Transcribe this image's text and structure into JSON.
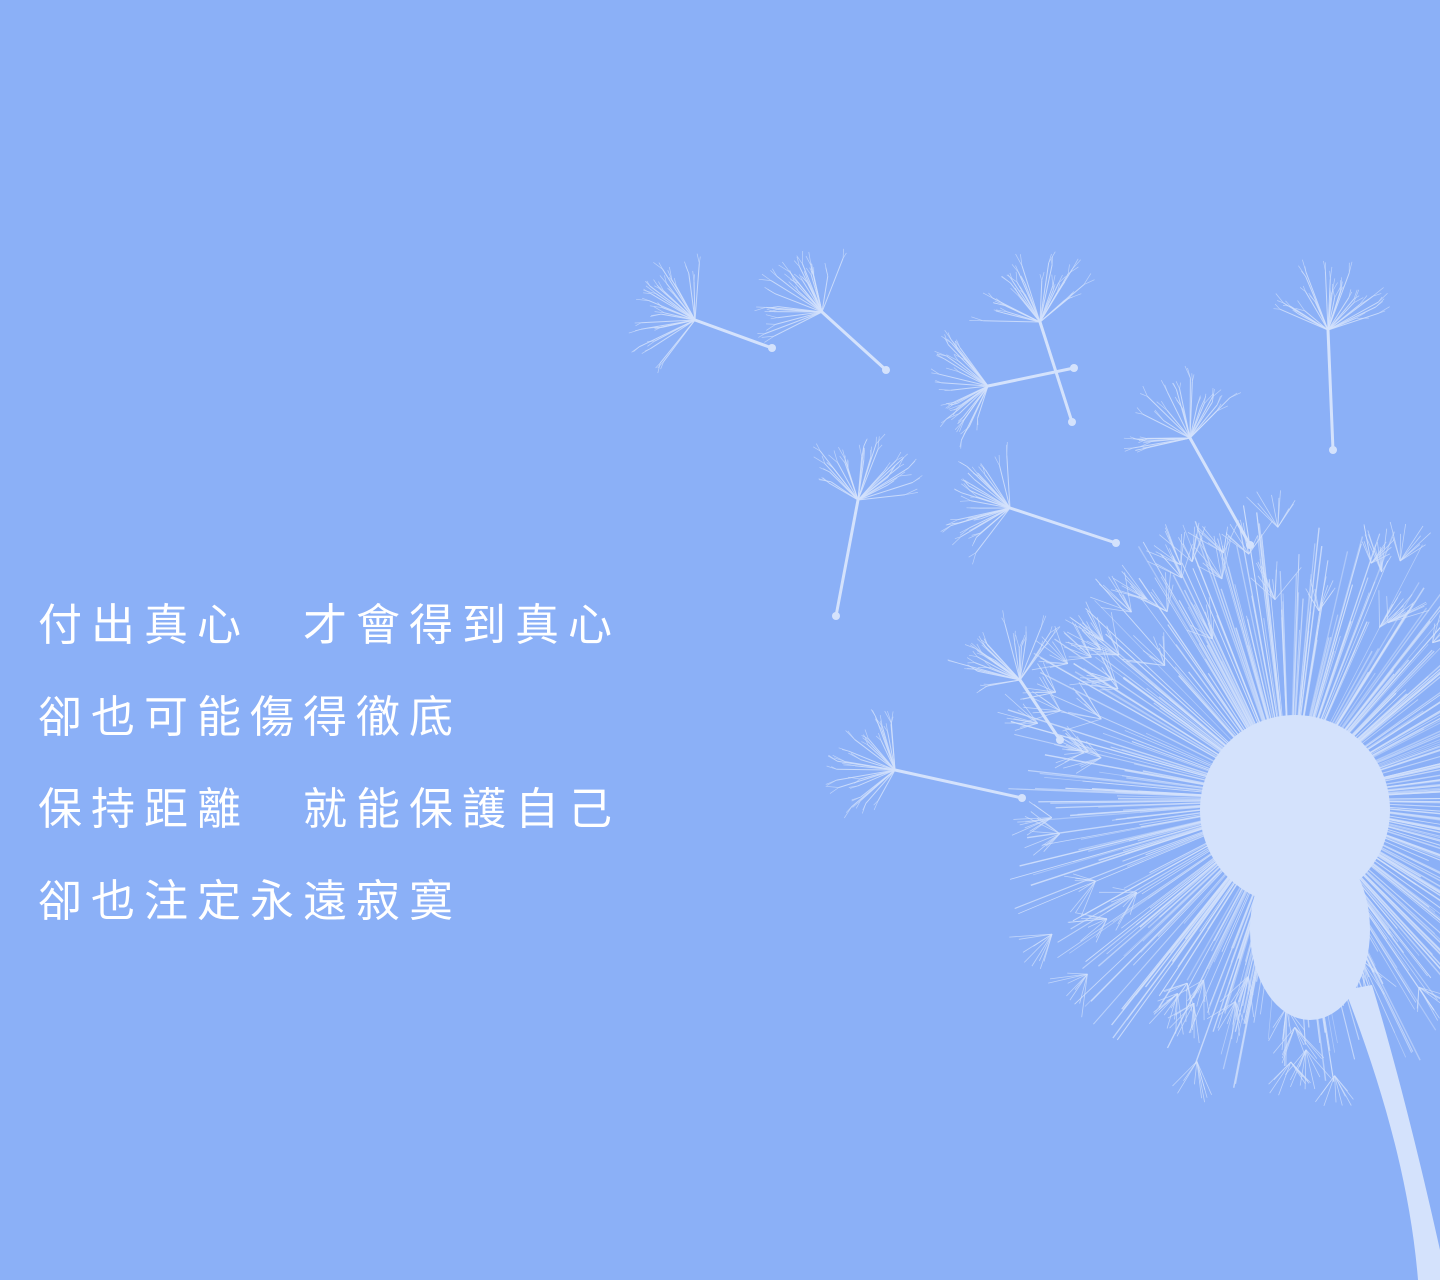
{
  "background_color": "#8BB0F7",
  "text_color": "#FFFFFF",
  "art_color": "#D4E2FC",
  "poem": {
    "lines": [
      "付出真心　才會得到真心",
      "卻也可能傷得徹底",
      "保持距離　就能保護自己",
      "卻也注定永遠寂寞"
    ]
  },
  "illustration": {
    "subject": "dandelion-icon",
    "seed_count": 10
  }
}
